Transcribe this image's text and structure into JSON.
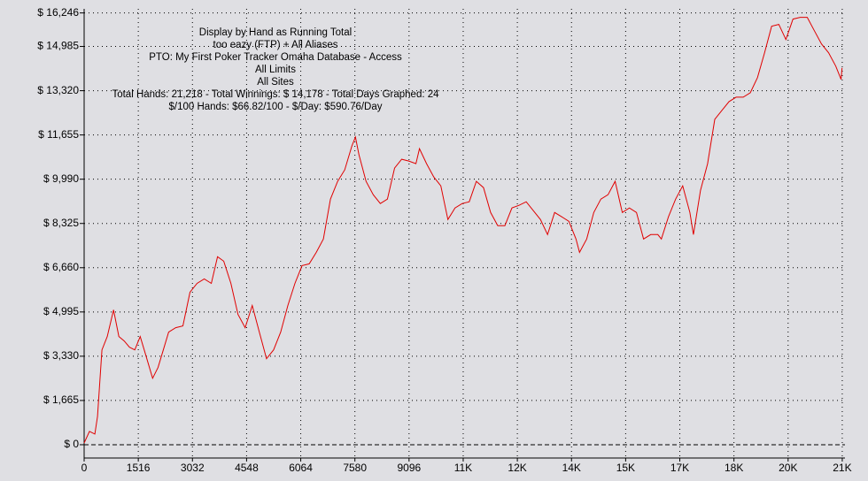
{
  "chart_data": {
    "type": "line",
    "annotations": [
      "Display by Hand as Running Total",
      "too eazy (FTP) + All Aliases",
      "PTO: My First Poker Tracker Omaha Database - Access",
      "All Limits",
      "All Sites",
      "Total Hands: 21,218 - Total Winnings: $ 14,178 - Total Days Graphed: 24",
      "$/100 Hands: $66.82/100 - $/Day: $590.76/Day"
    ],
    "color": "#e00000",
    "grid": true,
    "xlim": [
      0,
      21300
    ],
    "ylim": [
      -500,
      16400
    ],
    "xticks": [
      0,
      1516,
      3032,
      4548,
      6064,
      7580,
      9096,
      {
        "value": 10612,
        "label": "11K"
      },
      {
        "value": 12128,
        "label": "12K"
      },
      {
        "value": 13644,
        "label": "14K"
      },
      {
        "value": 15160,
        "label": "15K"
      },
      {
        "value": 16676,
        "label": "17K"
      },
      {
        "value": 18192,
        "label": "18K"
      },
      {
        "value": 19708,
        "label": "20K"
      },
      {
        "value": 21224,
        "label": "21K"
      }
    ],
    "yticks": [
      {
        "value": 0,
        "label": "$ 0"
      },
      {
        "value": 1665,
        "label": "$ 1,665"
      },
      {
        "value": 3330,
        "label": "$ 3,330"
      },
      {
        "value": 4995,
        "label": "$ 4,995"
      },
      {
        "value": 6660,
        "label": "$ 6,660"
      },
      {
        "value": 8325,
        "label": "$ 8,325"
      },
      {
        "value": 9990,
        "label": "$ 9,990"
      },
      {
        "value": 11655,
        "label": "$ 11,655"
      },
      {
        "value": 13320,
        "label": "$ 13,320"
      },
      {
        "value": 14985,
        "label": "$ 14,985"
      },
      {
        "value": 16246,
        "label": "$ 16,246"
      }
    ],
    "x": [
      0,
      149,
      299,
      374,
      498,
      647,
      822,
      971,
      1121,
      1270,
      1419,
      1569,
      1718,
      1917,
      2067,
      2216,
      2366,
      2565,
      2764,
      2963,
      3162,
      3362,
      3561,
      3735,
      3909,
      4109,
      4308,
      4507,
      4706,
      4905,
      5105,
      5304,
      5503,
      5702,
      5901,
      6101,
      6300,
      6499,
      6698,
      6897,
      7097,
      7296,
      7495,
      7595,
      7694,
      7893,
      8093,
      8292,
      8491,
      8690,
      8889,
      9089,
      9288,
      9387,
      9587,
      9786,
      9985,
      10184,
      10383,
      10583,
      10782,
      10981,
      11180,
      11380,
      11579,
      11778,
      11977,
      12176,
      12375,
      12575,
      12774,
      12973,
      13172,
      13371,
      13571,
      13770,
      13869,
      14069,
      14268,
      14467,
      14666,
      14865,
      15065,
      15264,
      15463,
      15662,
      15861,
      16061,
      16160,
      16359,
      16559,
      16758,
      16957,
      17057,
      17256,
      17455,
      17654,
      17853,
      18053,
      18252,
      18451,
      18650,
      18849,
      19049,
      19248,
      19447,
      19646,
      19845,
      20045,
      20244,
      20443,
      20642,
      20841,
      21041,
      21190,
      21218
    ],
    "values": [
      67,
      500,
      400,
      1068,
      3570,
      4070,
      5071,
      4070,
      3903,
      3670,
      3570,
      4070,
      3403,
      2502,
      2902,
      3570,
      4237,
      4404,
      4470,
      5738,
      6072,
      6238,
      6072,
      7072,
      6906,
      6072,
      4904,
      4404,
      5238,
      4237,
      3236,
      3570,
      4237,
      5238,
      6072,
      6739,
      6805,
      7239,
      7740,
      9241,
      9908,
      10342,
      11242,
      11576,
      10909,
      9908,
      9408,
      9074,
      9241,
      10408,
      10742,
      10675,
      10575,
      11142,
      10575,
      10075,
      9741,
      8473,
      8907,
      9074,
      9141,
      9908,
      9674,
      8740,
      8240,
      8240,
      8907,
      9007,
      9141,
      8807,
      8473,
      7906,
      8740,
      8574,
      8407,
      7740,
      7239,
      7740,
      8740,
      9241,
      9408,
      9908,
      8740,
      8907,
      8740,
      7740,
      7906,
      7906,
      7740,
      8574,
      9241,
      9741,
      8740,
      7906,
      9574,
      10575,
      12243,
      12577,
      12910,
      13077,
      13077,
      13244,
      13811,
      14745,
      15746,
      15813,
      15246,
      16013,
      16080,
      16080,
      15579,
      15079,
      14745,
      14245,
      13744,
      14178
    ]
  }
}
